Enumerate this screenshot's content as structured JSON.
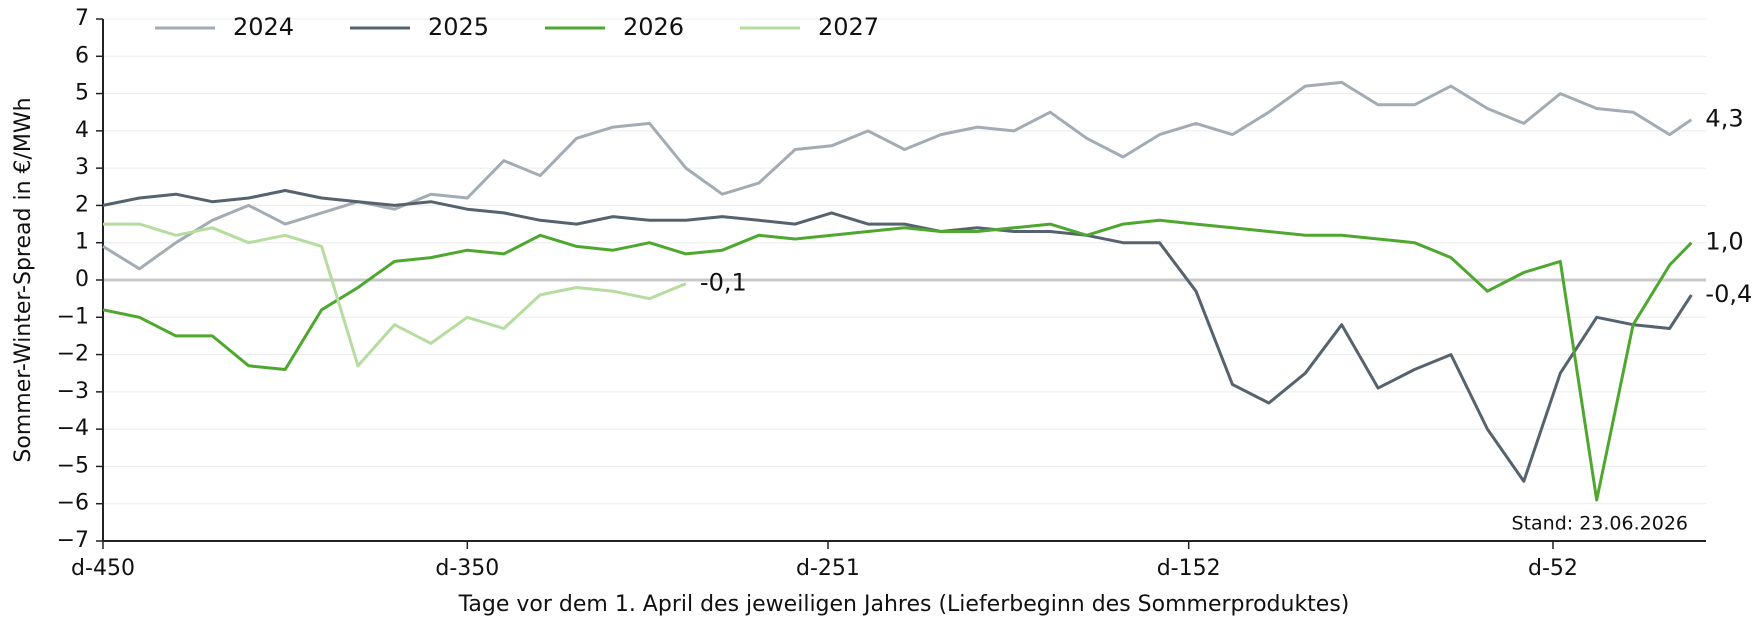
{
  "chart_data": {
    "type": "line",
    "xlabel": "Tage vor dem 1. April des jeweiligen Jahres (Lieferbeginn des Sommerproduktes)",
    "ylabel": "Sommer-Winter-Spread in €/MWh",
    "note": "Stand: 23.06.2026",
    "x": [
      -450,
      -440,
      -430,
      -420,
      -410,
      -400,
      -390,
      -380,
      -370,
      -360,
      -350,
      -340,
      -330,
      -320,
      -310,
      -300,
      -290,
      -280,
      -270,
      -260,
      -250,
      -240,
      -230,
      -220,
      -210,
      -200,
      -190,
      -180,
      -170,
      -160,
      -150,
      -140,
      -130,
      -120,
      -110,
      -100,
      -90,
      -80,
      -70,
      -60,
      -50,
      -40,
      -30,
      -20,
      -14
    ],
    "series": [
      {
        "name": "2024",
        "color": "#a3acb4",
        "label": "4,3",
        "values": [
          0.9,
          0.3,
          1.0,
          1.6,
          2.0,
          1.5,
          1.8,
          2.1,
          1.9,
          2.3,
          2.2,
          3.2,
          2.8,
          3.8,
          4.1,
          4.2,
          3.0,
          2.3,
          2.6,
          3.5,
          3.6,
          4.0,
          3.5,
          3.9,
          4.1,
          4.0,
          4.5,
          3.8,
          3.3,
          3.9,
          4.2,
          3.9,
          4.5,
          5.2,
          5.3,
          4.7,
          4.7,
          5.2,
          4.6,
          4.2,
          5.0,
          4.6,
          4.5,
          3.9,
          4.3
        ]
      },
      {
        "name": "2025",
        "color": "#56636e",
        "label": "-0,4",
        "values": [
          2.0,
          2.2,
          2.3,
          2.1,
          2.2,
          2.4,
          2.2,
          2.1,
          2.0,
          2.1,
          1.9,
          1.8,
          1.6,
          1.5,
          1.7,
          1.6,
          1.6,
          1.7,
          1.6,
          1.5,
          1.8,
          1.5,
          1.5,
          1.3,
          1.4,
          1.3,
          1.3,
          1.2,
          1.0,
          1.0,
          -0.3,
          -2.8,
          -3.3,
          -2.5,
          -1.2,
          -2.9,
          -2.4,
          -2.0,
          -4.0,
          -5.4,
          -2.5,
          -1.0,
          -1.2,
          -1.3,
          -0.4
        ]
      },
      {
        "name": "2026",
        "color": "#4ea72e",
        "label": "1,0",
        "values": [
          -0.8,
          -1.0,
          -1.5,
          -1.5,
          -2.3,
          -2.4,
          -0.8,
          -0.2,
          0.5,
          0.6,
          0.8,
          0.7,
          1.2,
          0.9,
          0.8,
          1.0,
          0.7,
          0.8,
          1.2,
          1.1,
          1.2,
          1.3,
          1.4,
          1.3,
          1.3,
          1.4,
          1.5,
          1.2,
          1.5,
          1.6,
          1.5,
          1.4,
          1.3,
          1.2,
          1.2,
          1.1,
          1.0,
          0.6,
          -0.3,
          0.2,
          0.5,
          -5.9,
          -1.2,
          0.4,
          1.0
        ]
      },
      {
        "name": "2027",
        "color": "#b6dca0",
        "label": "-0,1",
        "values": [
          1.5,
          1.5,
          1.2,
          1.4,
          1.0,
          1.2,
          0.9,
          -2.3,
          -1.2,
          -1.7,
          -1.0,
          -1.3,
          -0.4,
          -0.2,
          -0.3,
          -0.5,
          -0.1,
          null,
          null,
          null,
          null,
          null,
          null,
          null,
          null,
          null,
          null,
          null,
          null,
          null,
          null,
          null,
          null,
          null,
          null,
          null,
          null,
          null,
          null,
          null,
          null,
          null,
          null,
          null,
          null
        ]
      }
    ],
    "xlim": [
      -450,
      -10
    ],
    "xticks": [
      {
        "value": -450,
        "label": "d-450"
      },
      {
        "value": -350,
        "label": "d-350"
      },
      {
        "value": -251,
        "label": "d-251"
      },
      {
        "value": -152,
        "label": "d-152"
      },
      {
        "value": -52,
        "label": "d-52"
      }
    ],
    "ylim": [
      -7,
      7
    ],
    "yticks": [
      {
        "value": -7,
        "label": "−7"
      },
      {
        "value": -6,
        "label": "−6"
      },
      {
        "value": -5,
        "label": "−5"
      },
      {
        "value": -4,
        "label": "−4"
      },
      {
        "value": -3,
        "label": "−3"
      },
      {
        "value": -2,
        "label": "−2"
      },
      {
        "value": -1,
        "label": "−1"
      },
      0,
      1,
      2,
      3,
      4,
      5,
      6,
      7
    ],
    "grid": true,
    "legend": "top-left"
  }
}
